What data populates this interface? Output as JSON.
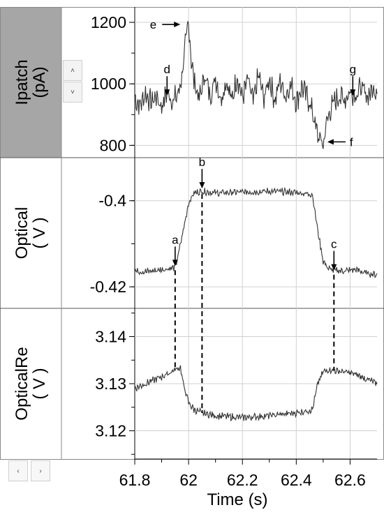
{
  "panels": {
    "top": {
      "ylabel": "Ipatch\n(pA)"
    },
    "middle": {
      "ylabel": "Optical\n( V )"
    },
    "bottom": {
      "ylabel": "OpticalRe\n( V )"
    }
  },
  "scroll_buttons": {
    "up": "˄",
    "down": "˅",
    "left": "‹",
    "right": "›"
  },
  "colors": {
    "trace": "#333333",
    "label_panel_active": "#a6a6a6",
    "grid": "#d0d0d0"
  },
  "chart_data": [
    {
      "type": "line",
      "ylabel": "Ipatch (pA)",
      "xlabel": "",
      "xlim": [
        61.8,
        62.7
      ],
      "ylim": [
        760,
        1250
      ],
      "yticks": [
        800,
        1000,
        1200
      ],
      "grid": true,
      "series": [
        {
          "x": [
            61.8,
            61.82,
            61.84,
            61.86,
            61.88,
            61.9,
            61.92,
            61.94,
            61.96,
            61.97,
            61.98,
            61.99,
            62.0,
            62.01,
            62.02,
            62.04,
            62.06,
            62.08,
            62.1,
            62.12,
            62.14,
            62.16,
            62.18,
            62.2,
            62.22,
            62.24,
            62.26,
            62.28,
            62.3,
            62.32,
            62.34,
            62.36,
            62.38,
            62.4,
            62.42,
            62.44,
            62.46,
            62.47,
            62.48,
            62.49,
            62.5,
            62.51,
            62.52,
            62.54,
            62.56,
            62.58,
            62.6,
            62.62,
            62.64,
            62.66,
            62.68,
            62.7
          ],
          "y": [
            950,
            930,
            970,
            940,
            960,
            925,
            975,
            945,
            965,
            1000,
            1060,
            1140,
            1200,
            1080,
            1010,
            950,
            1030,
            960,
            1020,
            950,
            1010,
            945,
            1025,
            955,
            1015,
            940,
            1030,
            950,
            1020,
            945,
            1010,
            960,
            1000,
            940,
            990,
            960,
            910,
            870,
            830,
            820,
            800,
            860,
            900,
            940,
            960,
            950,
            975,
            965,
            990,
            960,
            975,
            985
          ]
        }
      ],
      "annotations": [
        {
          "label": "e",
          "x": 61.99,
          "y": 1200
        },
        {
          "label": "d",
          "x": 61.92,
          "y": 975
        },
        {
          "label": "g",
          "x": 62.61,
          "y": 975
        },
        {
          "label": "f",
          "x": 62.5,
          "y": 800
        }
      ]
    },
    {
      "type": "line",
      "ylabel": "Optical ( V )",
      "xlabel": "",
      "xlim": [
        61.8,
        62.7
      ],
      "ylim": [
        -0.425,
        -0.39
      ],
      "yticks": [
        -0.42,
        -0.4
      ],
      "yticklabels": [
        "-0.42",
        "-0.4"
      ],
      "grid": true,
      "series": [
        {
          "x": [
            61.8,
            61.84,
            61.88,
            61.92,
            61.95,
            61.96,
            61.98,
            62.0,
            62.02,
            62.05,
            62.1,
            62.2,
            62.3,
            62.4,
            62.46,
            62.48,
            62.5,
            62.52,
            62.54,
            62.58,
            62.62,
            62.66,
            62.7
          ],
          "y": [
            -0.4163,
            -0.4165,
            -0.4162,
            -0.4158,
            -0.4155,
            -0.413,
            -0.407,
            -0.4005,
            -0.3982,
            -0.3978,
            -0.3982,
            -0.398,
            -0.3978,
            -0.3981,
            -0.3985,
            -0.407,
            -0.414,
            -0.4158,
            -0.4162,
            -0.4163,
            -0.416,
            -0.4168,
            -0.4172
          ]
        }
      ],
      "annotations": [
        {
          "label": "b",
          "x": 62.05,
          "y": -0.3978
        },
        {
          "label": "a",
          "x": 61.95,
          "y": -0.4155
        },
        {
          "label": "c",
          "x": 62.54,
          "y": -0.4162
        }
      ]
    },
    {
      "type": "line",
      "ylabel": "OpticalRe ( V )",
      "xlabel": "Time (s)",
      "xlim": [
        61.8,
        62.7
      ],
      "xticks": [
        61.8,
        62,
        62.2,
        62.4,
        62.6
      ],
      "xticklabels": [
        "61.8",
        "62",
        "62.2",
        "62.4",
        "62.6"
      ],
      "ylim": [
        3.114,
        3.146
      ],
      "yticks": [
        3.12,
        3.13,
        3.14
      ],
      "yticklabels": [
        "3.12",
        "3.13",
        "3.14"
      ],
      "grid": true,
      "series": [
        {
          "x": [
            61.8,
            61.84,
            61.88,
            61.92,
            61.95,
            61.97,
            61.98,
            62.0,
            62.02,
            62.05,
            62.1,
            62.2,
            62.3,
            62.4,
            62.46,
            62.48,
            62.5,
            62.52,
            62.54,
            62.58,
            62.62,
            62.66,
            62.7
          ],
          "y": [
            3.129,
            3.13,
            3.131,
            3.132,
            3.133,
            3.1335,
            3.13,
            3.126,
            3.1245,
            3.1238,
            3.1232,
            3.1228,
            3.1232,
            3.1238,
            3.1245,
            3.13,
            3.1325,
            3.133,
            3.1328,
            3.1325,
            3.132,
            3.131,
            3.13
          ]
        }
      ]
    }
  ]
}
